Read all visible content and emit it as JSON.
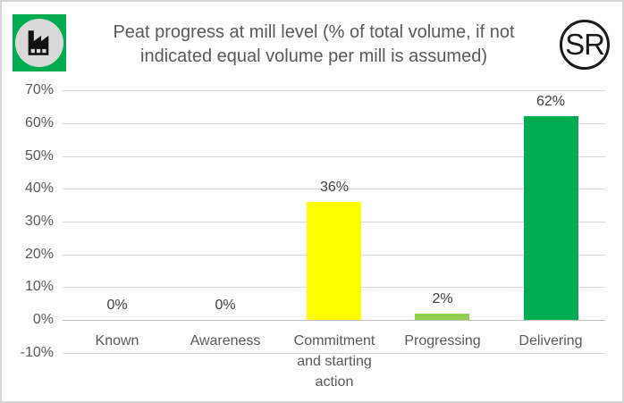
{
  "header": {
    "title_line1": "Peat progress at mill level (% of total volume, if not",
    "title_line2": "indicated equal volume per mill is assumed)",
    "logo_text": "SR"
  },
  "branding": {
    "icon_bg_green": "#00ac50",
    "icon_circle_gray": "#d9d9d9",
    "text_gray": "#595959",
    "gridline_gray": "#d9d9d9"
  },
  "chart_data": {
    "type": "bar",
    "title": "Peat progress at mill level (% of total volume, if not indicated equal volume per mill is assumed)",
    "categories": [
      "Known",
      "Awareness",
      "Commitment and starting action",
      "Progressing",
      "Delivering"
    ],
    "values": [
      0,
      0,
      36,
      2,
      62
    ],
    "data_labels": [
      "0%",
      "0%",
      "36%",
      "2%",
      "62%"
    ],
    "bar_colors": [
      "none",
      "none",
      "#ffff00",
      "#92d050",
      "#00ac50"
    ],
    "xlabel": "",
    "ylabel": "",
    "ylim": [
      -10,
      70
    ],
    "ytick_step": 10,
    "ytick_values": [
      70,
      60,
      50,
      40,
      30,
      20,
      10,
      0,
      -10
    ],
    "ytick_labels": [
      "70%",
      "60%",
      "50%",
      "40%",
      "30%",
      "20%",
      "10%",
      "0%",
      "-10%"
    ],
    "grid": true,
    "legend": false,
    "axis_crosses_at": 0
  }
}
